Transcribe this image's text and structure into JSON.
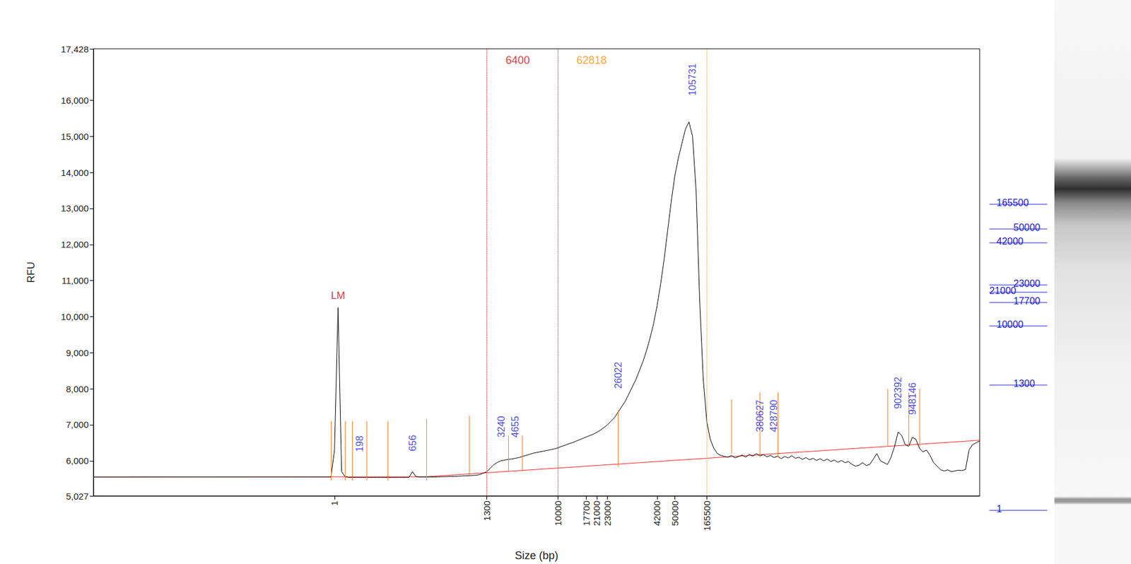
{
  "chart_data": {
    "type": "line",
    "x_label": "Size (bp)",
    "y_label": "RFU",
    "grid": false,
    "color": "#000000",
    "categories": [
      null,
      null,
      null,
      null,
      null,
      null,
      null,
      null,
      null,
      null,
      null,
      null,
      null,
      null,
      null,
      null,
      null,
      null,
      null,
      null,
      null,
      null,
      null,
      null,
      null,
      null,
      null,
      null,
      null,
      null,
      null,
      null,
      null,
      null,
      null,
      null,
      null,
      null,
      null,
      null,
      null,
      null,
      null,
      null,
      null,
      null,
      null,
      null,
      null,
      null,
      null,
      null,
      null,
      null,
      null,
      null,
      null,
      null,
      null,
      null,
      null,
      null,
      null,
      null,
      null,
      null,
      null,
      null,
      "1",
      null,
      null,
      null,
      null,
      null,
      null,
      null,
      null,
      null,
      null,
      null,
      null,
      null,
      null,
      null,
      null,
      null,
      null,
      null,
      null,
      null,
      null,
      null,
      null,
      null,
      null,
      null,
      null,
      null,
      null,
      null,
      null,
      null,
      null,
      null,
      null,
      null,
      null,
      null,
      null,
      null,
      null,
      "1300",
      null,
      null,
      null,
      null,
      null,
      null,
      null,
      null,
      null,
      null,
      null,
      null,
      null,
      null,
      null,
      null,
      null,
      null,
      null,
      "10000",
      null,
      null,
      null,
      null,
      null,
      null,
      null,
      "17700",
      null,
      null,
      "21000",
      null,
      null,
      "23000",
      null,
      null,
      null,
      null,
      null,
      null,
      null,
      null,
      null,
      null,
      null,
      null,
      null,
      "42000",
      null,
      null,
      null,
      null,
      "50000",
      null,
      null,
      null,
      null,
      null,
      null,
      null,
      null,
      "165500",
      null,
      null,
      null,
      null,
      null,
      null,
      null,
      null,
      null,
      null,
      null,
      null,
      null,
      null,
      null,
      null,
      null,
      null,
      null,
      null,
      null,
      null,
      null,
      null,
      null,
      null,
      null,
      null,
      null,
      null,
      null,
      null,
      null,
      null,
      null,
      null,
      null,
      null,
      null,
      null,
      null,
      null,
      null,
      null,
      null,
      null,
      null,
      null,
      null,
      null,
      null,
      null,
      null,
      null,
      null,
      null,
      null,
      null,
      null,
      null,
      null,
      null,
      null,
      null,
      null,
      null,
      null,
      null,
      null,
      null,
      null,
      null,
      null,
      null,
      null,
      null,
      null
    ],
    "values": [
      5550,
      5550,
      5550,
      5550,
      5550,
      5550,
      5550,
      5550,
      5550,
      5550,
      5550,
      5550,
      5550,
      5550,
      5550,
      5550,
      5550,
      5550,
      5550,
      5550,
      5550,
      5550,
      5550,
      5550,
      5550,
      5550,
      5550,
      5550,
      5550,
      5550,
      5550,
      5550,
      5550,
      5550,
      5550,
      5550,
      5550,
      5550,
      5550,
      5550,
      5550,
      5550,
      5550,
      5550,
      5550,
      5550,
      5550,
      5550,
      5550,
      5550,
      5550,
      5550,
      5550,
      5550,
      5550,
      5550,
      5550,
      5550,
      5550,
      5550,
      5550,
      5550,
      5550,
      5550,
      5550,
      5550,
      5550,
      5550,
      6300,
      10250,
      5700,
      5560,
      5540,
      5540,
      5540,
      5540,
      5540,
      5540,
      5540,
      5540,
      5540,
      5540,
      5540,
      5540,
      5540,
      5540,
      5540,
      5540,
      5540,
      5540,
      5700,
      5560,
      5550,
      5550,
      5550,
      5550,
      5550,
      5555,
      5560,
      5560,
      5565,
      5570,
      5570,
      5575,
      5580,
      5585,
      5590,
      5595,
      5600,
      5620,
      5660,
      5700,
      5800,
      5900,
      5960,
      6000,
      6020,
      6040,
      6050,
      6070,
      6090,
      6120,
      6150,
      6180,
      6210,
      6230,
      6250,
      6270,
      6290,
      6310,
      6330,
      6360,
      6400,
      6430,
      6470,
      6500,
      6540,
      6580,
      6620,
      6660,
      6700,
      6740,
      6790,
      6850,
      6920,
      7000,
      7100,
      7200,
      7350,
      7500,
      7650,
      7850,
      8050,
      8250,
      8500,
      8750,
      9050,
      9400,
      9800,
      10300,
      10900,
      11600,
      12400,
      13200,
      13900,
      14400,
      14800,
      15200,
      15400,
      15000,
      13500,
      10500,
      8300,
      7100,
      6600,
      6350,
      6200,
      6150,
      6120,
      6100,
      6150,
      6080,
      6120,
      6160,
      6100,
      6180,
      6130,
      6200,
      6140,
      6170,
      6110,
      6150,
      6090,
      6130,
      6060,
      6120,
      6080,
      6140,
      6070,
      6100,
      6040,
      6090,
      6030,
      6070,
      6010,
      6060,
      6000,
      6050,
      5980,
      6020,
      5960,
      6010,
      5950,
      5980,
      5900,
      5850,
      5880,
      5950,
      5870,
      5900,
      6050,
      6200,
      6000,
      5950,
      5900,
      6100,
      6400,
      6800,
      6700,
      6450,
      6400,
      6650,
      6600,
      6350,
      6250,
      6300,
      6150,
      5950,
      5850,
      5750,
      5720,
      5750,
      5700,
      5720,
      5740,
      5730,
      5760,
      6300,
      6450,
      6500,
      6550
    ],
    "ylim": [
      5027,
      17428
    ],
    "yticks": [
      5027,
      6000,
      7000,
      8000,
      9000,
      10000,
      11000,
      12000,
      13000,
      14000,
      15000,
      16000,
      17428
    ],
    "baseline": {
      "color": "#ff2020",
      "points": [
        [
          0,
          5550
        ],
        [
          94,
          5560
        ],
        [
          250,
          6570
        ]
      ]
    },
    "cutoffs": [
      {
        "at": "1300",
        "color": "#e00000"
      },
      {
        "at": "10000",
        "color": "#e00000"
      },
      {
        "at": "165500",
        "color": "#ff8c00"
      }
    ],
    "regions": [
      {
        "from": "1300",
        "to": "10000",
        "label": "6400",
        "color": "#e00000"
      },
      {
        "from": "10000",
        "to": "165500",
        "label": "62818",
        "color": "#ff8c00"
      }
    ],
    "peak_markers": {
      "color": "#ff7f27",
      "lines": [
        {
          "at": 67,
          "from": 5450,
          "to": 7100
        },
        {
          "at": 71,
          "from": 5450,
          "to": 7100
        },
        {
          "at": 73,
          "from": 5450,
          "to": 7100
        },
        {
          "at": 77,
          "from": 5450,
          "to": 7100
        },
        {
          "at": 83,
          "from": 5450,
          "to": 7100
        },
        {
          "at": 94,
          "from": 5450,
          "to": 7160
        },
        {
          "at": 106,
          "from": 5600,
          "to": 7260
        },
        {
          "at": 117,
          "from": 5700,
          "to": 6700
        },
        {
          "at": 121,
          "from": 5700,
          "to": 6700
        },
        {
          "at": 148,
          "from": 5840,
          "to": 7400
        },
        {
          "at": 180,
          "from": 6200,
          "to": 7700
        },
        {
          "at": 188,
          "from": 6100,
          "to": 7900
        },
        {
          "at": 193,
          "from": 6100,
          "to": 7900
        },
        {
          "at": 224,
          "from": 6400,
          "to": 8000
        },
        {
          "at": 230,
          "from": 6400,
          "to": 7900
        },
        {
          "at": 233,
          "from": 6400,
          "to": 8000
        }
      ]
    },
    "peak_labels": {
      "color": "#2020e0",
      "items": [
        {
          "label": "198",
          "at": 75,
          "y": 6250
        },
        {
          "label": "656",
          "at": 90,
          "y": 6270
        },
        {
          "label": "3240",
          "at": 115,
          "y": 6650
        },
        {
          "label": "4655",
          "at": 119,
          "y": 6650
        },
        {
          "label": "26022",
          "at": 148,
          "y": 8000
        },
        {
          "label": "105731",
          "at": 169,
          "y": 16130
        },
        {
          "label": "380627",
          "at": 188,
          "y": 6800
        },
        {
          "label": "428790",
          "at": 192,
          "y": 6800
        },
        {
          "label": "902392",
          "at": 227,
          "y": 7440
        },
        {
          "label": "948146",
          "at": 231,
          "y": 7280
        }
      ]
    },
    "annotations": [
      {
        "text": "LM",
        "at": 69,
        "y": 10450,
        "color": "#e00000"
      }
    ],
    "gel": {
      "color": "#2020e0",
      "ladder": [
        "165500",
        "50000",
        "42000",
        "23000",
        "21000",
        "17700",
        "10000",
        "1300",
        "1"
      ]
    }
  }
}
